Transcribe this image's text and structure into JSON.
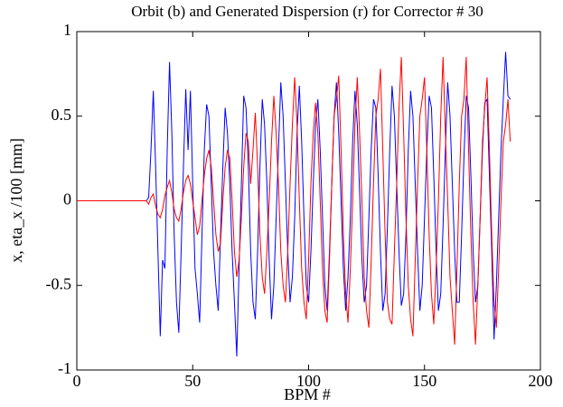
{
  "chart_data": {
    "type": "line",
    "title": "Orbit (b) and Generated Dispersion (r) for Corrector # 30",
    "xlabel": "BPM #",
    "ylabel": "x, eta_x /100 [mm]",
    "xlim": [
      0,
      200
    ],
    "xticks": [
      0,
      50,
      100,
      150,
      200
    ],
    "ylim": [
      -1,
      1
    ],
    "yticks": [
      -1,
      -0.5,
      0,
      0.5,
      1
    ],
    "grid": false,
    "x": [
      0,
      29,
      30,
      31,
      32,
      33,
      34,
      35,
      36,
      37,
      38,
      39,
      40,
      41,
      42,
      43,
      44,
      45,
      46,
      47,
      48,
      49,
      50,
      51,
      52,
      53,
      54,
      55,
      56,
      57,
      58,
      59,
      60,
      61,
      62,
      63,
      64,
      65,
      66,
      67,
      68,
      69,
      70,
      71,
      72,
      73,
      74,
      75,
      76,
      77,
      78,
      79,
      80,
      81,
      82,
      83,
      84,
      85,
      86,
      87,
      88,
      89,
      90,
      91,
      92,
      93,
      94,
      95,
      96,
      97,
      98,
      99,
      100,
      101,
      102,
      103,
      104,
      105,
      106,
      107,
      108,
      109,
      110,
      111,
      112,
      113,
      114,
      115,
      116,
      117,
      118,
      119,
      120,
      121,
      122,
      123,
      124,
      125,
      126,
      127,
      128,
      129,
      130,
      131,
      132,
      133,
      134,
      135,
      136,
      137,
      138,
      139,
      140,
      141,
      142,
      143,
      144,
      145,
      146,
      147,
      148,
      149,
      150,
      151,
      152,
      153,
      154,
      155,
      156,
      157,
      158,
      159,
      160,
      161,
      162,
      163,
      164,
      165,
      166,
      167,
      168,
      169,
      170,
      171,
      172,
      173,
      174,
      175,
      176,
      177,
      178,
      179,
      180,
      181,
      182,
      183,
      184,
      185,
      186,
      187
    ],
    "series": [
      {
        "color": "#0000ff",
        "values": [
          0,
          0,
          0,
          0.02,
          0.3,
          0.65,
          0.2,
          -0.3,
          -0.8,
          -0.35,
          -0.4,
          0.3,
          0.82,
          0.4,
          -0.2,
          -0.6,
          -0.78,
          -0.3,
          0.2,
          0.66,
          0.3,
          0.65,
          0.1,
          -0.4,
          -0.55,
          -0.72,
          -0.2,
          0.3,
          0.57,
          0.5,
          0.1,
          -0.3,
          -0.5,
          -0.65,
          -0.2,
          0.2,
          0.55,
          0.4,
          0.1,
          -0.3,
          -0.6,
          -0.92,
          -0.4,
          0.1,
          0.62,
          0.55,
          0.2,
          -0.3,
          -0.6,
          -0.7,
          -0.3,
          0.2,
          0.6,
          0.45,
          0.1,
          -0.35,
          -0.7,
          -0.5,
          -0.1,
          0.3,
          0.7,
          0.5,
          0.1,
          -0.3,
          -0.6,
          -0.45,
          -0.1,
          0.4,
          0.68,
          0.35,
          -0.1,
          -0.5,
          -0.6,
          -0.3,
          0.1,
          0.45,
          0.6,
          0.3,
          -0.1,
          -0.5,
          -0.65,
          -0.3,
          0.1,
          0.5,
          0.7,
          0.4,
          0,
          -0.4,
          -0.65,
          -0.45,
          -0.1,
          0.35,
          0.65,
          0.45,
          0.05,
          -0.35,
          -0.6,
          -0.5,
          -0.1,
          0.3,
          0.6,
          0.55,
          0.15,
          -0.3,
          -0.65,
          -0.55,
          -0.15,
          0.3,
          0.68,
          0.5,
          0.1,
          -0.3,
          -0.62,
          -0.55,
          -0.2,
          0.3,
          0.65,
          0.5,
          0.1,
          -0.3,
          -0.65,
          -0.5,
          -0.1,
          0.3,
          0.62,
          0.55,
          0.15,
          -0.3,
          -0.65,
          -0.55,
          -0.15,
          0.3,
          0.7,
          0.5,
          0.1,
          -0.3,
          -0.6,
          -0.6,
          -0.2,
          0.25,
          0.62,
          0.55,
          0.15,
          -0.3,
          -0.6,
          -0.5,
          -0.1,
          0.3,
          0.58,
          0.6,
          0.15,
          -0.3,
          -0.82,
          -0.5,
          -0.1,
          0.3,
          0.6,
          0.88,
          0.62,
          0.6
        ]
      },
      {
        "color": "#ff0000",
        "values": [
          0,
          0,
          0,
          -0.02,
          0.02,
          0.04,
          -0.03,
          -0.08,
          -0.1,
          -0.05,
          0.03,
          0.08,
          0.12,
          0.05,
          -0.05,
          -0.1,
          -0.12,
          -0.05,
          0.05,
          0.12,
          0.15,
          0.1,
          0,
          -0.1,
          -0.2,
          -0.15,
          0,
          0.15,
          0.25,
          0.3,
          0.2,
          0,
          -0.2,
          -0.3,
          -0.25,
          0,
          0.2,
          0.3,
          0.25,
          0,
          -0.3,
          -0.45,
          -0.35,
          -0.1,
          0.2,
          0.4,
          0.35,
          0.1,
          0.3,
          0.52,
          0.2,
          -0.2,
          -0.45,
          -0.55,
          -0.3,
          0,
          0.35,
          0.62,
          0.4,
          0.1,
          -0.3,
          -0.5,
          -0.6,
          -0.3,
          0.1,
          0.45,
          0.73,
          0.45,
          0,
          -0.4,
          -0.6,
          -0.7,
          -0.35,
          0.1,
          0.4,
          0.58,
          0.4,
          0,
          -0.4,
          -0.65,
          -0.72,
          -0.35,
          0.1,
          0.5,
          0.6,
          0.74,
          0.3,
          -0.2,
          -0.55,
          -0.72,
          -0.4,
          0,
          0.45,
          0.73,
          0.4,
          0,
          -0.45,
          -0.65,
          -0.75,
          -0.35,
          0.1,
          0.5,
          0.6,
          0.78,
          0.3,
          -0.2,
          -0.6,
          -0.7,
          -0.73,
          -0.3,
          0.1,
          0.55,
          0.85,
          0.4,
          -0.1,
          -0.5,
          -0.7,
          -0.8,
          -0.35,
          0.1,
          0.5,
          0.6,
          0.73,
          0.3,
          -0.2,
          -0.55,
          -0.73,
          -0.4,
          0,
          0.5,
          0.85,
          0.4,
          0,
          -0.45,
          -0.65,
          -0.85,
          -0.4,
          0.1,
          0.5,
          0.6,
          0.85,
          0.3,
          -0.2,
          -0.6,
          -0.85,
          -0.5,
          -0.1,
          0.35,
          0.55,
          0.73,
          0.3,
          -0.2,
          -0.6,
          -0.75,
          -0.4,
          0,
          0.35,
          0.45,
          0.6,
          0.35
        ]
      }
    ]
  }
}
